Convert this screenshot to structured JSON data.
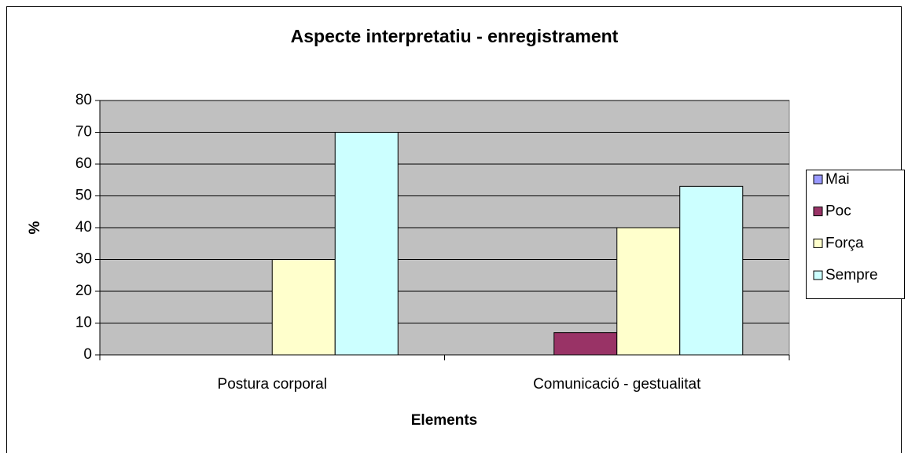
{
  "chart_data": {
    "type": "bar",
    "title": "Aspecte interpretatiu - enregistrament",
    "x_label": "Elements",
    "y_label": "%",
    "categories": [
      "Postura corporal",
      "Comunicació - gestualitat"
    ],
    "series": [
      {
        "name": "Mai",
        "color": "#9999ff",
        "values": [
          0,
          0
        ]
      },
      {
        "name": "Poc",
        "color": "#993366",
        "values": [
          0,
          7
        ]
      },
      {
        "name": "Força",
        "color": "#ffffcc",
        "values": [
          30,
          40
        ]
      },
      {
        "name": "Sempre",
        "color": "#ccffff",
        "values": [
          70,
          53
        ]
      }
    ],
    "ylim": [
      0,
      80
    ],
    "yticks": [
      0,
      10,
      20,
      30,
      40,
      50,
      60,
      70,
      80
    ],
    "grid": true,
    "legend": "right",
    "plot_background": "#c0c0c0"
  }
}
